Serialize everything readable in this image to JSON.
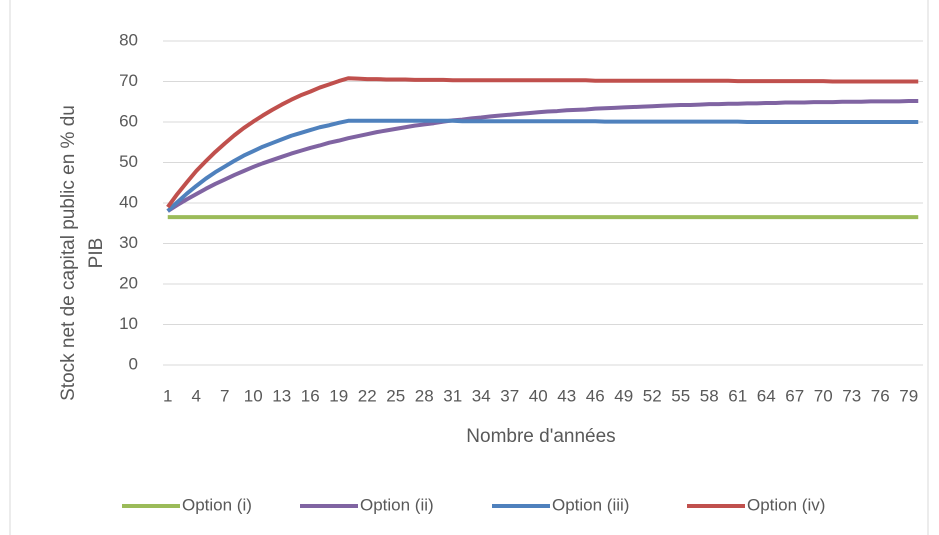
{
  "chart_data": {
    "type": "line",
    "x_label": "Nombre d'années",
    "y_label": "Stock net de capital public en % du PIB",
    "x": [
      1,
      2,
      3,
      4,
      5,
      6,
      7,
      8,
      9,
      10,
      11,
      12,
      13,
      14,
      15,
      16,
      17,
      18,
      19,
      20,
      21,
      22,
      23,
      24,
      25,
      26,
      27,
      28,
      29,
      30,
      31,
      32,
      33,
      34,
      35,
      36,
      37,
      38,
      39,
      40,
      41,
      42,
      43,
      44,
      45,
      46,
      47,
      48,
      49,
      50,
      51,
      52,
      53,
      54,
      55,
      56,
      57,
      58,
      59,
      60,
      61,
      62,
      63,
      64,
      65,
      66,
      67,
      68,
      69,
      70,
      71,
      72,
      73,
      74,
      75,
      76,
      77,
      78,
      79,
      80
    ],
    "xlim": [
      0.5,
      80.5
    ],
    "xticks": [
      1,
      4,
      7,
      10,
      13,
      16,
      19,
      22,
      25,
      28,
      31,
      34,
      37,
      40,
      43,
      46,
      49,
      52,
      55,
      58,
      61,
      64,
      67,
      70,
      73,
      76,
      79
    ],
    "ylim": [
      0,
      80
    ],
    "yticks": [
      0,
      10,
      20,
      30,
      40,
      50,
      60,
      70,
      80
    ],
    "grid": true,
    "legend": "bottom",
    "series": [
      {
        "name": "Option (i)",
        "color": "#9bbb59",
        "values": [
          36.5,
          36.5,
          36.5,
          36.5,
          36.5,
          36.5,
          36.5,
          36.5,
          36.5,
          36.5,
          36.5,
          36.5,
          36.5,
          36.5,
          36.5,
          36.5,
          36.5,
          36.5,
          36.5,
          36.5,
          36.5,
          36.5,
          36.5,
          36.5,
          36.5,
          36.5,
          36.5,
          36.5,
          36.5,
          36.5,
          36.5,
          36.5,
          36.5,
          36.5,
          36.5,
          36.5,
          36.5,
          36.5,
          36.5,
          36.5,
          36.5,
          36.5,
          36.5,
          36.5,
          36.5,
          36.5,
          36.5,
          36.5,
          36.5,
          36.5,
          36.5,
          36.5,
          36.5,
          36.5,
          36.5,
          36.5,
          36.5,
          36.5,
          36.5,
          36.5,
          36.5,
          36.5,
          36.5,
          36.5,
          36.5,
          36.5,
          36.5,
          36.5,
          36.5,
          36.5,
          36.5,
          36.5,
          36.5,
          36.5,
          36.5,
          36.5,
          36.5,
          36.5,
          36.5,
          36.5
        ]
      },
      {
        "name": "Option (ii)",
        "color": "#8064a2",
        "values": [
          38.0,
          39.5,
          40.9,
          42.2,
          43.5,
          44.7,
          45.8,
          46.9,
          47.9,
          48.9,
          49.8,
          50.6,
          51.4,
          52.2,
          52.9,
          53.6,
          54.2,
          54.9,
          55.4,
          56.0,
          56.5,
          57.0,
          57.5,
          57.9,
          58.3,
          58.7,
          59.1,
          59.4,
          59.7,
          60.1,
          60.4,
          60.6,
          60.9,
          61.1,
          61.4,
          61.6,
          61.8,
          62.0,
          62.2,
          62.4,
          62.6,
          62.7,
          62.9,
          63.0,
          63.1,
          63.3,
          63.4,
          63.5,
          63.6,
          63.7,
          63.8,
          63.9,
          64.0,
          64.1,
          64.2,
          64.2,
          64.3,
          64.4,
          64.4,
          64.5,
          64.5,
          64.6,
          64.6,
          64.7,
          64.7,
          64.8,
          64.8,
          64.8,
          64.9,
          64.9,
          64.9,
          65.0,
          65.0,
          65.0,
          65.1,
          65.1,
          65.1,
          65.1,
          65.2,
          65.2
        ]
      },
      {
        "name": "Option (iii)",
        "color": "#4f81bd",
        "values": [
          38.0,
          40.2,
          42.3,
          44.2,
          46.0,
          47.6,
          49.0,
          50.4,
          51.7,
          52.8,
          53.9,
          54.8,
          55.7,
          56.6,
          57.3,
          58.0,
          58.7,
          59.2,
          59.8,
          60.3,
          60.3,
          60.3,
          60.3,
          60.3,
          60.3,
          60.3,
          60.3,
          60.3,
          60.3,
          60.3,
          60.3,
          60.2,
          60.2,
          60.2,
          60.2,
          60.2,
          60.2,
          60.2,
          60.2,
          60.2,
          60.2,
          60.2,
          60.2,
          60.2,
          60.2,
          60.2,
          60.1,
          60.1,
          60.1,
          60.1,
          60.1,
          60.1,
          60.1,
          60.1,
          60.1,
          60.1,
          60.1,
          60.1,
          60.1,
          60.1,
          60.1,
          60.0,
          60.0,
          60.0,
          60.0,
          60.0,
          60.0,
          60.0,
          60.0,
          60.0,
          60.0,
          60.0,
          60.0,
          60.0,
          60.0,
          60.0,
          60.0,
          60.0,
          60.0,
          60.0
        ]
      },
      {
        "name": "Option (iv)",
        "color": "#c0504d",
        "values": [
          39.0,
          42.2,
          45.1,
          47.9,
          50.3,
          52.6,
          54.7,
          56.7,
          58.5,
          60.1,
          61.6,
          63.0,
          64.3,
          65.5,
          66.6,
          67.5,
          68.5,
          69.3,
          70.1,
          70.8,
          70.7,
          70.6,
          70.6,
          70.5,
          70.5,
          70.5,
          70.4,
          70.4,
          70.4,
          70.4,
          70.3,
          70.3,
          70.3,
          70.3,
          70.3,
          70.3,
          70.3,
          70.3,
          70.3,
          70.3,
          70.3,
          70.3,
          70.3,
          70.3,
          70.3,
          70.2,
          70.2,
          70.2,
          70.2,
          70.2,
          70.2,
          70.2,
          70.2,
          70.2,
          70.2,
          70.2,
          70.2,
          70.2,
          70.2,
          70.2,
          70.1,
          70.1,
          70.1,
          70.1,
          70.1,
          70.1,
          70.1,
          70.1,
          70.1,
          70.1,
          70.0,
          70.0,
          70.0,
          70.0,
          70.0,
          70.0,
          70.0,
          70.0,
          70.0,
          70.0
        ]
      }
    ]
  }
}
